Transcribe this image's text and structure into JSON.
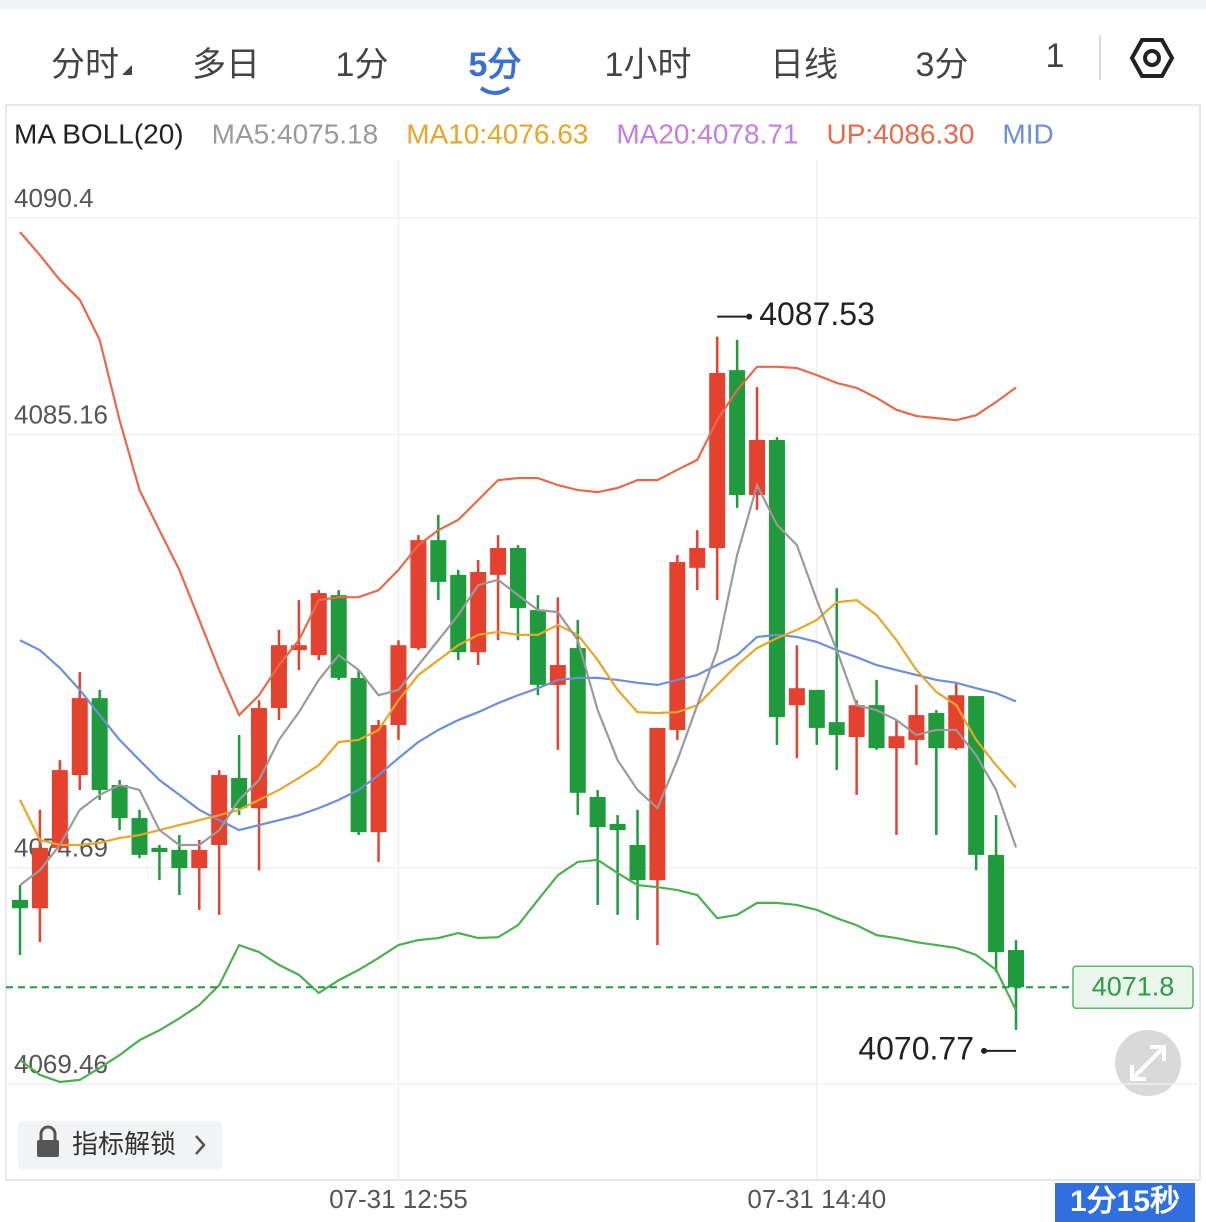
{
  "tabs": [
    {
      "label": "分时"
    },
    {
      "label": "多日"
    },
    {
      "label": "1分"
    },
    {
      "label": "5分",
      "selected": true
    },
    {
      "label": "1小时"
    },
    {
      "label": "日线"
    },
    {
      "label": "3分"
    },
    {
      "label": "1"
    }
  ],
  "unlock_button": "指标解锁",
  "timer_badge": "1分15秒",
  "chart_data": {
    "type": "candlestick",
    "legend": [
      {
        "text": "MA BOLL(20)",
        "color": "#222222"
      },
      {
        "text": "MA5:4075.18",
        "color": "#9a9a9a"
      },
      {
        "text": "MA10:4076.63",
        "color": "#e8a628"
      },
      {
        "text": "MA20:4078.71",
        "color": "#c77de0"
      },
      {
        "text": "UP:4086.30",
        "color": "#e8694a"
      },
      {
        "text": "MID",
        "color": "#6b8fd8"
      }
    ],
    "categories": [
      null,
      null,
      null,
      null,
      null,
      null,
      null,
      null,
      null,
      null,
      null,
      null,
      null,
      null,
      null,
      null,
      null,
      null,
      null,
      "07-31 12:55",
      null,
      null,
      null,
      null,
      null,
      null,
      null,
      null,
      null,
      null,
      null,
      null,
      null,
      null,
      null,
      null,
      null,
      null,
      null,
      null,
      "07-31 14:40",
      null,
      null,
      null,
      null,
      null,
      null,
      null,
      null,
      null,
      null
    ],
    "candles": {
      "open": [
        4073.91,
        4073.71,
        4075.17,
        4076.93,
        4078.79,
        4076.69,
        4075.89,
        4075.17,
        4075.12,
        4074.68,
        4075.24,
        4076.86,
        4076.13,
        4078.55,
        4079.95,
        4079.83,
        4081.28,
        4079.28,
        4075.55,
        4078.14,
        4080.0,
        4082.61,
        4081.77,
        4079.9,
        4081.77,
        4082.42,
        4080.92,
        4079.11,
        4080.0,
        4076.4,
        4075.75,
        4075.24,
        4074.39,
        4078.02,
        4081.94,
        4082.42,
        4086.72,
        4083.7,
        4085.03,
        4078.62,
        4078.99,
        4078.21,
        4077.85,
        4078.62,
        4077.58,
        4077.78,
        4078.43,
        4077.58,
        4078.84,
        4075.0,
        4072.7
      ],
      "high": [
        4074.27,
        4076.09,
        4077.29,
        4079.42,
        4078.99,
        4076.81,
        4076.09,
        4075.24,
        4075.48,
        4075.36,
        4077.05,
        4077.9,
        4078.74,
        4080.44,
        4081.16,
        4081.4,
        4081.4,
        4079.47,
        4078.26,
        4080.19,
        4082.73,
        4083.22,
        4081.89,
        4082.13,
        4082.73,
        4082.49,
        4081.28,
        4081.23,
        4080.68,
        4076.57,
        4075.96,
        4076.09,
        4078.07,
        4082.25,
        4082.85,
        4087.53,
        4087.45,
        4086.31,
        4085.1,
        4080.07,
        4078.99,
        4081.45,
        4078.74,
        4079.23,
        4078.26,
        4079.11,
        4078.5,
        4079.16,
        4078.84,
        4075.96,
        4072.94
      ],
      "low": [
        4072.58,
        4072.89,
        4075.12,
        4076.57,
        4076.33,
        4075.6,
        4074.92,
        4074.39,
        4074.03,
        4073.67,
        4073.55,
        4075.96,
        4074.63,
        4078.26,
        4079.47,
        4079.71,
        4079.23,
        4075.48,
        4074.83,
        4077.78,
        4079.95,
        4081.16,
        4079.71,
        4079.59,
        4080.19,
        4080.19,
        4078.86,
        4077.54,
        4075.96,
        4073.79,
        4073.55,
        4073.43,
        4072.82,
        4077.78,
        4081.4,
        4081.16,
        4083.39,
        4083.34,
        4077.66,
        4077.34,
        4077.66,
        4077.05,
        4076.45,
        4077.54,
        4075.48,
        4077.17,
        4075.48,
        4077.54,
        4074.63,
        4072.17,
        4070.77
      ],
      "close": [
        4073.71,
        4075.17,
        4077.05,
        4078.79,
        4076.57,
        4075.89,
        4075.0,
        4075.07,
        4074.68,
        4075.12,
        4076.93,
        4076.13,
        4078.55,
        4080.07,
        4080.07,
        4081.33,
        4079.28,
        4075.55,
        4078.14,
        4080.07,
        4082.61,
        4081.6,
        4079.9,
        4081.84,
        4082.42,
        4080.97,
        4079.11,
        4079.59,
        4076.5,
        4075.67,
        4075.6,
        4074.39,
        4078.07,
        4082.08,
        4082.42,
        4086.65,
        4083.7,
        4085.03,
        4078.33,
        4079.03,
        4078.07,
        4077.9,
        4078.62,
        4077.58,
        4077.87,
        4078.38,
        4077.58,
        4078.86,
        4075.0,
        4072.65,
        4071.8
      ]
    },
    "up_color": "#e5412f",
    "down_color": "#1f9a3c",
    "lines": [
      {
        "color": "#e8694a",
        "values": [
          4090.06,
          4089.5,
          4088.9,
          4088.42,
          4087.45,
          4085.51,
          4083.82,
          4082.85,
          4081.89,
          4080.68,
          4079.47,
          4078.38,
          4078.86,
          4079.59,
          4080.19,
          4081.16,
          4081.23,
          4081.23,
          4081.4,
          4081.89,
          4082.49,
          4082.85,
          4083.1,
          4083.58,
          4084.06,
          4084.11,
          4084.11,
          4083.94,
          4083.82,
          4083.77,
          4083.87,
          4084.06,
          4084.06,
          4084.31,
          4084.55,
          4085.51,
          4086.24,
          4086.8,
          4086.8,
          4086.77,
          4086.6,
          4086.41,
          4086.29,
          4086.05,
          4085.76,
          4085.61,
          4085.56,
          4085.51,
          4085.63,
          4085.95,
          4086.3
        ]
      },
      {
        "color": "#6b8fd8",
        "values": [
          4080.19,
          4079.95,
          4079.52,
          4078.99,
          4078.38,
          4077.78,
          4077.29,
          4076.81,
          4076.45,
          4076.09,
          4075.84,
          4075.6,
          4075.72,
          4075.84,
          4075.96,
          4076.13,
          4076.33,
          4076.57,
          4076.93,
          4077.34,
          4077.73,
          4078.02,
          4078.26,
          4078.45,
          4078.67,
          4078.86,
          4079.03,
          4079.23,
          4079.28,
          4079.28,
          4079.23,
          4079.16,
          4079.11,
          4079.23,
          4079.35,
          4079.59,
          4079.83,
          4080.27,
          4080.32,
          4080.27,
          4080.15,
          4079.95,
          4079.78,
          4079.59,
          4079.47,
          4079.35,
          4079.23,
          4079.16,
          4079.03,
          4078.91,
          4078.71
        ]
      },
      {
        "color": "#4caf50",
        "values": [
          4070.04,
          4069.68,
          4069.51,
          4069.56,
          4069.85,
          4070.16,
          4070.52,
          4070.76,
          4071.05,
          4071.37,
          4071.85,
          4072.82,
          4072.65,
          4072.34,
          4072.1,
          4071.66,
          4071.97,
          4072.22,
          4072.51,
          4072.82,
          4072.94,
          4072.99,
          4073.11,
          4072.99,
          4073.01,
          4073.3,
          4073.91,
          4074.51,
          4074.83,
          4074.88,
          4074.56,
          4074.27,
          4074.22,
          4074.15,
          4074.03,
          4073.47,
          4073.55,
          4073.84,
          4073.84,
          4073.79,
          4073.67,
          4073.47,
          4073.3,
          4073.06,
          4072.99,
          4072.89,
          4072.82,
          4072.75,
          4072.58,
          4072.22,
          4071.25
        ]
      },
      {
        "color": "#e8a628",
        "values": [
          4076.33,
          4075.36,
          4075.24,
          4075.24,
          4075.29,
          4075.41,
          4075.48,
          4075.6,
          4075.72,
          4075.84,
          4075.96,
          4076.09,
          4076.33,
          4076.57,
          4076.86,
          4077.17,
          4077.73,
          4077.78,
          4078.02,
          4078.74,
          4079.35,
          4079.71,
          4080.07,
          4080.32,
          4080.39,
          4080.32,
          4080.32,
          4080.56,
          4080.32,
          4079.71,
          4078.99,
          4078.45,
          4078.43,
          4078.45,
          4078.62,
          4079.11,
          4079.59,
          4080.0,
          4080.24,
          4080.44,
          4080.68,
          4081.11,
          4081.16,
          4080.8,
          4080.19,
          4079.47,
          4078.94,
          4078.62,
          4077.78,
          4077.17,
          4076.63
        ]
      },
      {
        "color": "#9a9a9a",
        "values": [
          4074.27,
          4074.63,
          4075.24,
          4076.09,
          4076.45,
          4076.69,
          4076.57,
          4075.6,
          4075.24,
          4075.24,
          4075.6,
          4076.33,
          4076.81,
          4077.78,
          4078.45,
          4079.23,
          4079.83,
          4079.47,
          4078.86,
          4078.99,
          4079.59,
          4080.19,
          4080.8,
          4081.52,
          4081.65,
          4081.28,
          4080.92,
          4080.87,
          4080.19,
          4078.5,
          4077.29,
          4076.57,
          4076.13,
          4077.29,
          4078.62,
          4079.95,
          4082.25,
          4083.94,
          4082.98,
          4082.49,
          4081.16,
          4079.95,
          4078.62,
          4078.5,
          4078.26,
          4077.9,
          4078.02,
          4078.02,
          4077.41,
          4076.57,
          4075.18
        ]
      }
    ],
    "ylim": [
      4067.14,
      4093.13
    ],
    "yticks": [
      4090.4,
      4085.16,
      4074.69,
      4069.46
    ],
    "grid": true
  }
}
